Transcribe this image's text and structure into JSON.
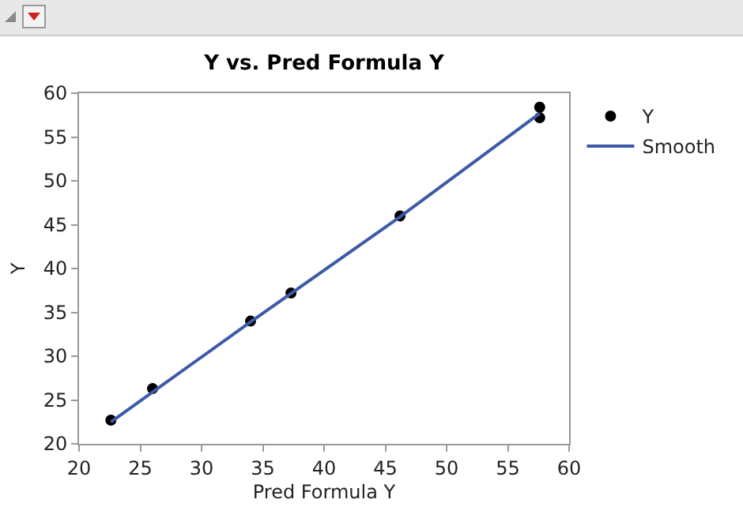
{
  "chart_data": {
    "type": "scatter",
    "title": "Y vs. Pred Formula Y",
    "xlabel": "Pred Formula Y",
    "ylabel": "Y",
    "xlim": [
      20,
      60
    ],
    "xticks": [
      20,
      25,
      30,
      35,
      40,
      45,
      50,
      55,
      60
    ],
    "ylim": [
      20,
      60
    ],
    "yticks": [
      20,
      25,
      30,
      35,
      40,
      45,
      50,
      55,
      60
    ],
    "grid": false,
    "legend": "top right",
    "series": [
      {
        "name": "Y",
        "marker": "circle",
        "color": "#000000",
        "x": [
          22.6,
          26,
          34,
          37.3,
          46.2,
          57.6,
          57.6
        ],
        "values": [
          22.7,
          26.3,
          34,
          37.2,
          46,
          58.4,
          57.2
        ]
      },
      {
        "name": "Smooth",
        "type": "line",
        "marker": "none",
        "color": "#3d5aa8",
        "line_style": "solid",
        "x": [
          22.6,
          34,
          46.2,
          57.6
        ],
        "values": [
          22.5,
          33.9,
          45.9,
          57.7
        ]
      }
    ]
  }
}
